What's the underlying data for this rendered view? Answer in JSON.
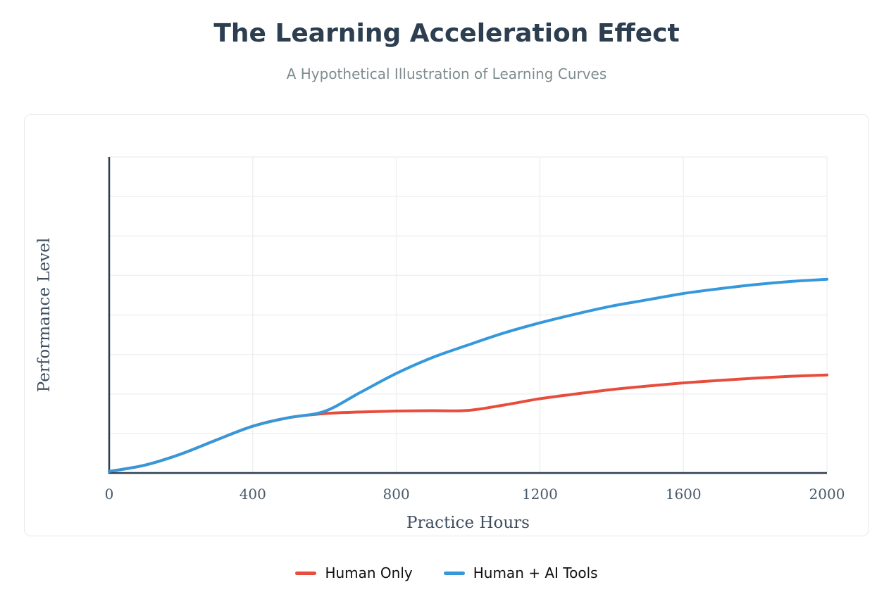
{
  "header": {
    "title": "The Learning Acceleration Effect",
    "subtitle": "A Hypothetical Illustration of Learning Curves"
  },
  "chart_data": {
    "type": "line",
    "xlabel": "Practice Hours",
    "ylabel": "Performance Level",
    "xlim": [
      0,
      2000
    ],
    "ylim": [
      0,
      100
    ],
    "x_ticks": [
      0,
      400,
      800,
      1200,
      1600,
      2000
    ],
    "y_tick_labels_shown": false,
    "y_gridlines": [
      12.5,
      25,
      37.5,
      50,
      62.5,
      75,
      87.5,
      100
    ],
    "grid": true,
    "legend_position": "bottom-center",
    "series": [
      {
        "name": "Human Only",
        "color": "#e74c3c",
        "x": [
          0,
          100,
          200,
          300,
          400,
          500,
          600,
          700,
          800,
          900,
          1000,
          1100,
          1200,
          1300,
          1400,
          1500,
          1600,
          1700,
          1800,
          1900,
          2000
        ],
        "y": [
          0.5,
          2.5,
          6.0,
          10.5,
          14.8,
          17.5,
          18.8,
          19.3,
          19.6,
          19.7,
          19.8,
          21.5,
          23.5,
          25.0,
          26.4,
          27.5,
          28.5,
          29.3,
          30.0,
          30.6,
          31.0
        ]
      },
      {
        "name": "Human + AI Tools",
        "color": "#3498db",
        "x": [
          0,
          100,
          200,
          300,
          400,
          500,
          600,
          700,
          800,
          900,
          1000,
          1100,
          1200,
          1300,
          1400,
          1500,
          1600,
          1700,
          1800,
          1900,
          2000
        ],
        "y": [
          0.5,
          2.5,
          6.0,
          10.5,
          14.8,
          17.5,
          19.5,
          25.5,
          31.5,
          36.5,
          40.5,
          44.3,
          47.5,
          50.3,
          52.8,
          54.8,
          56.8,
          58.3,
          59.6,
          60.6,
          61.3
        ]
      }
    ]
  }
}
